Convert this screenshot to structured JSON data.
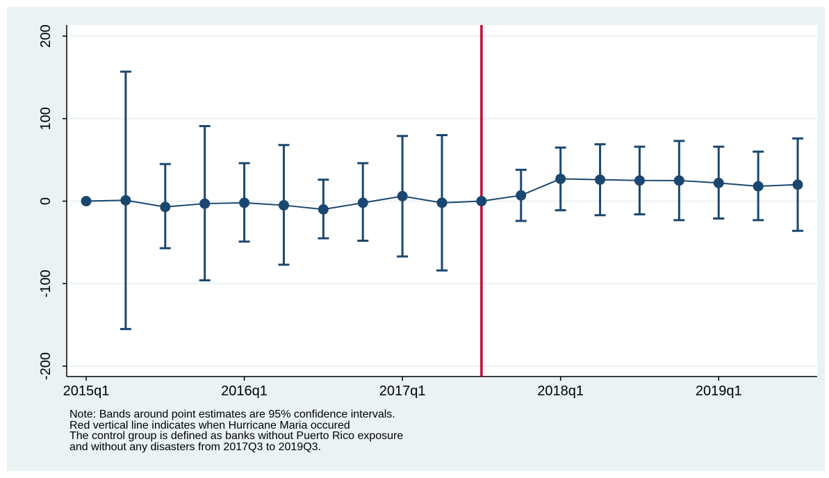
{
  "chart_data": {
    "type": "line",
    "title": "",
    "xlabel": "",
    "ylabel": "",
    "ylim": [
      -200,
      200
    ],
    "yticks": [
      -200,
      -100,
      0,
      100,
      200
    ],
    "xtick_labels": [
      {
        "label": "2015q1",
        "x": 0
      },
      {
        "label": "2016q1",
        "x": 4
      },
      {
        "label": "2017q1",
        "x": 8
      },
      {
        "label": "2018q1",
        "x": 12
      },
      {
        "label": "2019q1",
        "x": 16
      }
    ],
    "xlim": [
      -0.3,
      18.4
    ],
    "grid": true,
    "legend": "none",
    "vertical_line": {
      "x": 10,
      "color": "#c10534"
    },
    "series_color": "#1a476f",
    "background": "#eaf2f3",
    "series": [
      {
        "x": [
          0,
          1,
          2,
          3,
          4,
          5,
          6,
          7,
          8,
          9,
          10,
          11,
          12,
          13,
          14,
          15,
          16,
          17,
          18
        ],
        "values": [
          0,
          1,
          -7,
          -3,
          -2,
          -5,
          -10,
          -2,
          6,
          -2,
          0,
          7,
          27,
          26,
          25,
          25,
          22,
          18,
          20
        ],
        "ci_low": [
          null,
          -155,
          -57,
          -96,
          -49,
          -77,
          -45,
          -48,
          -67,
          -84,
          null,
          -24,
          -11,
          -17,
          -16,
          -23,
          -21,
          -23,
          -36
        ],
        "ci_high": [
          null,
          157,
          45,
          91,
          46,
          68,
          26,
          46,
          79,
          80,
          null,
          38,
          65,
          69,
          66,
          73,
          66,
          60,
          76
        ]
      }
    ]
  },
  "notes": [
    "Note: Bands around point estimates are 95% confidence intervals.",
    "Red vertical line indicates when Hurricane Maria occured",
    "The control group is defined as banks without Puerto Rico exposure",
    "and without any disasters from 2017Q3 to 2019Q3."
  ]
}
